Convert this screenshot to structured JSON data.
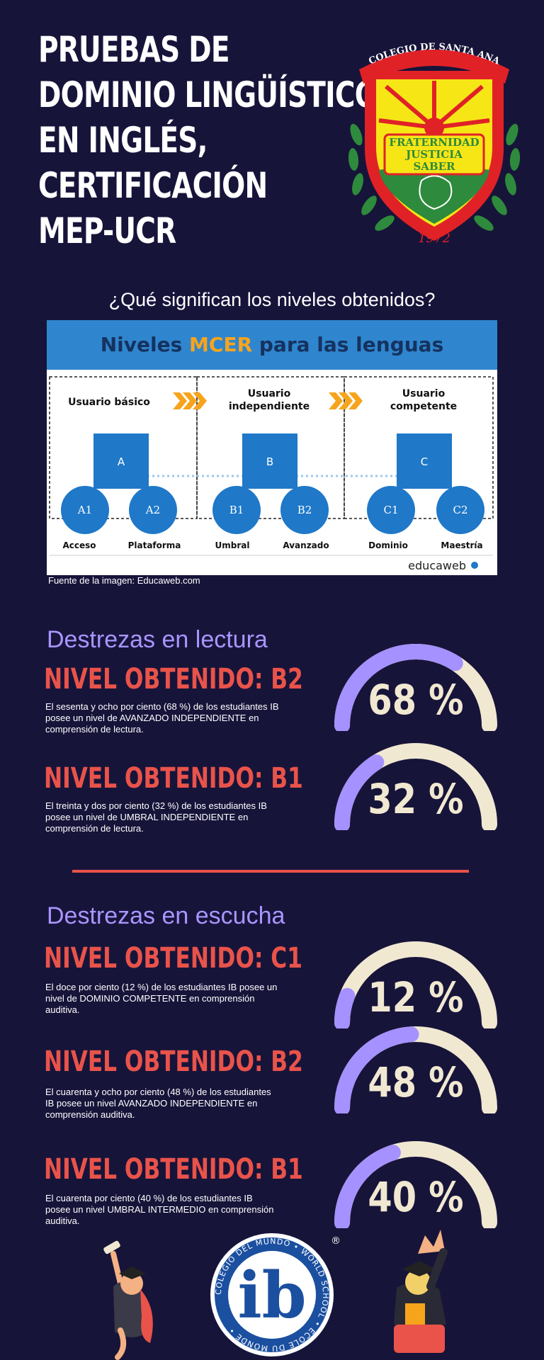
{
  "header": {
    "title_lines": [
      "PRUEBAS DE",
      "DOMINIO LINGÜÍSTICO",
      "EN INGLÉS,",
      "CERTIFICACIÓN",
      "MEP-UCR"
    ]
  },
  "crest": {
    "banner": "COLEGIO DE SANTA ANA",
    "motto": [
      "FRATERNIDAD",
      "JUSTICIA",
      "SABER"
    ],
    "year": "1972",
    "colors": {
      "red": "#e02227",
      "yellow": "#f6e616",
      "green": "#2e8a3c",
      "gold": "#c89a29"
    }
  },
  "question": "¿Qué significan los niveles obtenidos?",
  "mcer": {
    "title_prefix": "Niveles",
    "title_highlight": "MCER",
    "title_suffix": "para las lenguas",
    "groups": [
      {
        "label": [
          "Usuario básico"
        ],
        "letter": "A",
        "sublevels": [
          "A1",
          "A2"
        ],
        "names": [
          "Acceso",
          "Plataforma"
        ]
      },
      {
        "label": [
          "Usuario",
          "independiente"
        ],
        "letter": "B",
        "sublevels": [
          "B1",
          "B2"
        ],
        "names": [
          "Umbral",
          "Avanzado"
        ]
      },
      {
        "label": [
          "Usuario",
          "competente"
        ],
        "letter": "C",
        "sublevels": [
          "C1",
          "C2"
        ],
        "names": [
          "Dominio",
          "Maestría"
        ]
      }
    ],
    "brand": "educaweb",
    "colors": {
      "blue": "#1f78c8",
      "header": "#2f86cf",
      "chevron": "#f7a41d"
    }
  },
  "source": "Fuente de la imagen: Educaweb.com",
  "reading": {
    "title": "Destrezas en lectura",
    "items": [
      {
        "level": "NIVEL OBTENIDO: B2",
        "value": "68 %",
        "fraction": 0.68,
        "desc_lines": [
          "El sesenta y ocho por ciento (68 %) de los estudiantes IB",
          "posee un nivel  de AVANZADO INDEPENDIENTE en",
          "comprensión de lectura."
        ]
      },
      {
        "level": "NIVEL OBTENIDO: B1",
        "value": "32 %",
        "fraction": 0.32,
        "desc_lines": [
          "El treinta y dos por ciento (32 %) de los estudiantes IB",
          "posee un nivel de UMBRAL INDEPENDIENTE en",
          "comprensión de lectura."
        ]
      }
    ]
  },
  "listening": {
    "title": "Destrezas en escucha",
    "items": [
      {
        "level": "NIVEL OBTENIDO: C1",
        "value": "12 %",
        "fraction": 0.12,
        "desc_lines": [
          "El doce por ciento (12 %) de los estudiantes IB posee un",
          "nivel de DOMINIO COMPETENTE en comprensión",
          "auditiva."
        ]
      },
      {
        "level": "NIVEL OBTENIDO: B2",
        "value": "48 %",
        "fraction": 0.48,
        "desc_lines": [
          "El cuarenta y ocho por ciento (48 %) de los estudiantes",
          "IB posee un nivel AVANZADO INDEPENDIENTE en",
          "comprensión auditiva."
        ]
      },
      {
        "level": "NIVEL OBTENIDO: B1",
        "value": "40 %",
        "fraction": 0.4,
        "desc_lines": [
          "El cuarenta por ciento (40 %) de los estudiantes IB",
          "posee un nivel UMBRAL INTERMEDIO en comprensión",
          "auditiva."
        ]
      }
    ]
  },
  "gauge_colors": {
    "track": "#f1e8d1",
    "fill": "#a591ff"
  },
  "ib_logo": {
    "letters": "ib",
    "ring_text": "COLEGIO DEL MUNDO • WORLD SCHOOL • ÉCOLE DU MONDE •",
    "registered": "®"
  }
}
